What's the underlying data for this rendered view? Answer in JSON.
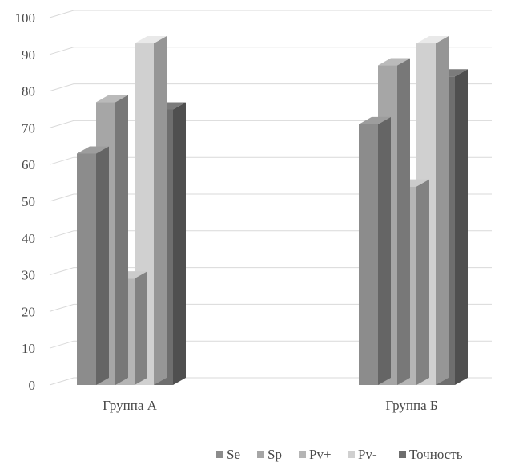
{
  "chart_data": {
    "type": "bar",
    "style": "3d-clustered-column",
    "categories": [
      "Группа А",
      "Группа Б"
    ],
    "series": [
      {
        "name": "Se",
        "values": [
          63,
          71
        ],
        "color": "#8c8c8c"
      },
      {
        "name": "Sp",
        "values": [
          77,
          87
        ],
        "color": "#a6a6a6"
      },
      {
        "name": "Pv+",
        "values": [
          29,
          54
        ],
        "color": "#b5b5b5"
      },
      {
        "name": "Pv-",
        "values": [
          93,
          93
        ],
        "color": "#d0d0d0"
      },
      {
        "name": "Точность",
        "values": [
          75,
          84
        ],
        "color": "#6e6e6e"
      }
    ],
    "yticks": [
      "0",
      "10",
      "20",
      "30",
      "40",
      "50",
      "60",
      "70",
      "80",
      "90",
      "100"
    ],
    "ylim": [
      0,
      100
    ],
    "grid": true,
    "legend_position": "bottom-right"
  }
}
